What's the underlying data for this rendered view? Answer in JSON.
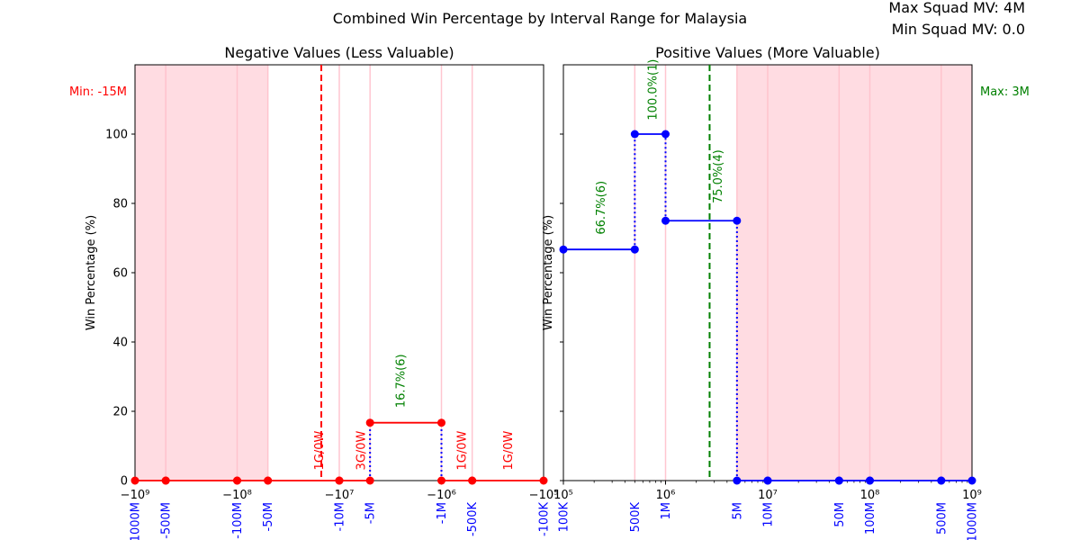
{
  "figure": {
    "suptitle": "Combined Win Percentage by Interval Range for Malaysia",
    "max_squad_mv": "Max Squad MV: 4M",
    "min_squad_mv": "Min Squad MV: 0.0",
    "min_label": "Min: -15M",
    "max_label": "Max: 3M"
  },
  "colors": {
    "negative_line": "#ff0000",
    "positive_line": "#0000ff",
    "connector": "#0000ff",
    "annotation_win": "#008000",
    "annotation_neg": "#ff0000",
    "shade": "#ffc0cb",
    "min_line": "#ff0000",
    "max_line": "#008000",
    "tick_label": "#0000ff"
  },
  "chart_data": [
    {
      "type": "line",
      "title": "Negative Values (Less Valuable)",
      "ylabel": "Win Percentage (%)",
      "xscale": "symlog-negative",
      "xlim": [
        -1000000000,
        -100000
      ],
      "ylim": [
        0,
        100
      ],
      "yticks": [
        0,
        20,
        40,
        60,
        80,
        100
      ],
      "major_ticks": [
        {
          "value": -1000000000,
          "label": "−10⁹"
        },
        {
          "value": -100000000,
          "label": "−10⁸"
        },
        {
          "value": -10000000,
          "label": "−10⁷"
        },
        {
          "value": -1000000,
          "label": "−10⁶"
        },
        {
          "value": -100000,
          "label": "−10⁵"
        }
      ],
      "interval_labels": [
        {
          "value": -1000000000,
          "label": "-1000M"
        },
        {
          "value": -500000000,
          "label": "-500M"
        },
        {
          "value": -100000000,
          "label": "-100M"
        },
        {
          "value": -50000000,
          "label": "-50M"
        },
        {
          "value": -10000000,
          "label": "-10M"
        },
        {
          "value": -5000000,
          "label": "-5M"
        },
        {
          "value": -1000000,
          "label": "-1M"
        },
        {
          "value": -500000,
          "label": "-500K"
        },
        {
          "value": -100000,
          "label": "-100K"
        }
      ],
      "segments": [
        {
          "x0": -1000000000,
          "x1": -500000000,
          "y": 0
        },
        {
          "x0": -500000000,
          "x1": -100000000,
          "y": 0
        },
        {
          "x0": -100000000,
          "x1": -50000000,
          "y": 0
        },
        {
          "x0": -50000000,
          "x1": -10000000,
          "y": 0
        },
        {
          "x0": -10000000,
          "x1": -5000000,
          "y": 0
        },
        {
          "x0": -5000000,
          "x1": -1000000,
          "y": 16.7
        },
        {
          "x0": -1000000,
          "x1": -500000,
          "y": 0
        },
        {
          "x0": -500000,
          "x1": -100000,
          "y": 0
        }
      ],
      "connectors": [
        {
          "x": -5000000,
          "y0": 0,
          "y1": 16.7
        },
        {
          "x": -1000000,
          "y0": 0,
          "y1": 16.7
        }
      ],
      "shade": [
        -1000000000,
        -50000000
      ],
      "vline": -15000000,
      "annotations": [
        {
          "x": -16000000,
          "y": 3,
          "text": "1G/0W",
          "color": "neg"
        },
        {
          "x": -6200000,
          "y": 3,
          "text": "3G/0W",
          "color": "neg"
        },
        {
          "x": -2550000,
          "y": 21,
          "text": "16.7%(6)",
          "color": "win"
        },
        {
          "x": -640000,
          "y": 3,
          "text": "1G/0W",
          "color": "neg"
        },
        {
          "x": -226000,
          "y": 3,
          "text": "1G/0W",
          "color": "neg"
        }
      ]
    },
    {
      "type": "line",
      "title": "Positive Values (More Valuable)",
      "ylabel": "Win Percentage (%)",
      "xscale": "log",
      "xlim": [
        100000,
        1000000000
      ],
      "ylim": [
        0,
        100
      ],
      "major_ticks": [
        {
          "value": 100000,
          "label": "10⁵"
        },
        {
          "value": 1000000,
          "label": "10⁶"
        },
        {
          "value": 10000000,
          "label": "10⁷"
        },
        {
          "value": 100000000,
          "label": "10⁸"
        },
        {
          "value": 1000000000,
          "label": "10⁹"
        }
      ],
      "interval_labels": [
        {
          "value": 100000,
          "label": "100K"
        },
        {
          "value": 500000,
          "label": "500K"
        },
        {
          "value": 1000000,
          "label": "1M"
        },
        {
          "value": 5000000,
          "label": "5M"
        },
        {
          "value": 10000000,
          "label": "10M"
        },
        {
          "value": 50000000,
          "label": "50M"
        },
        {
          "value": 100000000,
          "label": "100M"
        },
        {
          "value": 500000000,
          "label": "500M"
        },
        {
          "value": 1000000000,
          "label": "1000M"
        }
      ],
      "segments": [
        {
          "x0": 100000,
          "x1": 500000,
          "y": 66.7
        },
        {
          "x0": 500000,
          "x1": 1000000,
          "y": 100
        },
        {
          "x0": 1000000,
          "x1": 5000000,
          "y": 75
        },
        {
          "x0": 5000000,
          "x1": 10000000,
          "y": 0
        },
        {
          "x0": 10000000,
          "x1": 50000000,
          "y": 0
        },
        {
          "x0": 50000000,
          "x1": 100000000,
          "y": 0
        },
        {
          "x0": 100000000,
          "x1": 500000000,
          "y": 0
        },
        {
          "x0": 500000000,
          "x1": 1000000000,
          "y": 0
        }
      ],
      "connectors": [
        {
          "x": 500000,
          "y0": 66.7,
          "y1": 100
        },
        {
          "x": 1000000,
          "y0": 75,
          "y1": 100
        },
        {
          "x": 5000000,
          "y0": 0,
          "y1": 75
        }
      ],
      "shade": [
        5000000,
        1000000000
      ],
      "vline": 2700000,
      "annotations": [
        {
          "x": 230000,
          "y": 71,
          "text": "66.7%(6)",
          "color": "win"
        },
        {
          "x": 740000,
          "y": 104,
          "text": "100.0%(1)",
          "color": "win"
        },
        {
          "x": 3200000,
          "y": 80,
          "text": "75.0%(4)",
          "color": "win"
        }
      ]
    }
  ]
}
